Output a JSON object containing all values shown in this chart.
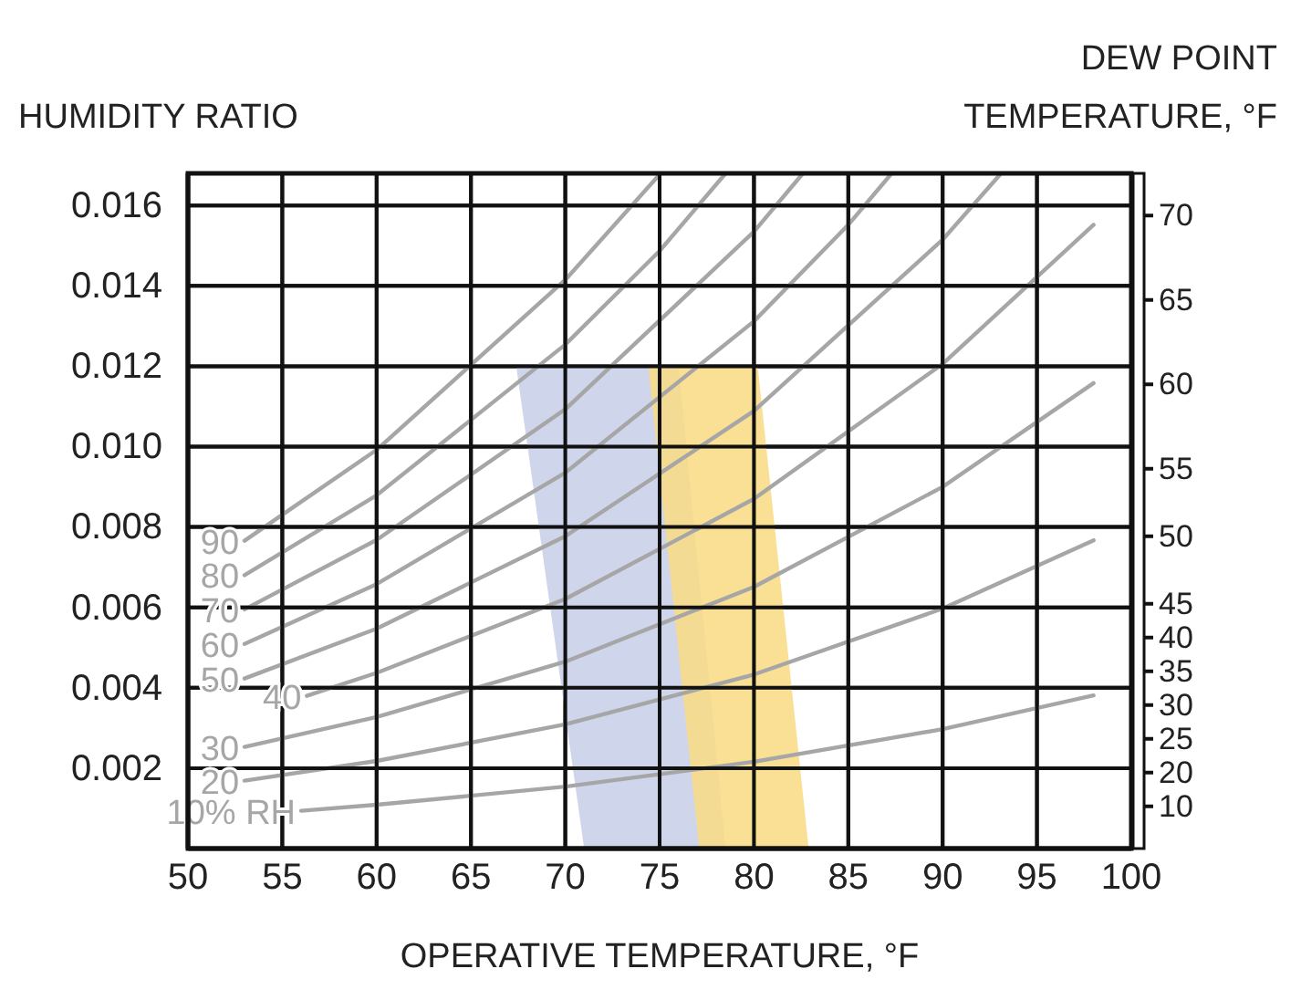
{
  "chart_data": {
    "type": "line",
    "xlabel": "OPERATIVE TEMPERATURE, °F",
    "ylabel": "HUMIDITY RATIO",
    "y2label": "DEW POINT TEMPERATURE, °F",
    "xlim": [
      50,
      100
    ],
    "xticks": [
      50,
      55,
      60,
      65,
      70,
      75,
      80,
      85,
      90,
      95,
      100
    ],
    "ylim": [
      0,
      0.0168
    ],
    "yticks": [
      0.002,
      0.004,
      0.006,
      0.008,
      {
        "value": 0.01,
        "label": "0.010"
      },
      0.012,
      0.014,
      0.016
    ],
    "y2_categories": [
      null,
      null,
      "70",
      null,
      null,
      null,
      null,
      "65",
      null,
      null,
      null,
      null,
      "60",
      null,
      null,
      null,
      null,
      "55",
      null,
      null,
      null,
      "50",
      null,
      null,
      null,
      "45",
      null,
      "40",
      null,
      "35",
      null,
      "30",
      null,
      "25",
      null,
      "20",
      null,
      "10",
      null,
      null
    ],
    "grid": true,
    "legend": false,
    "marker": "none",
    "line_style": "solid",
    "series": [
      {
        "type": "area",
        "color": "#c8cfe8",
        "x": [
          67.4,
          76.0,
          78.5,
          71.0
        ],
        "values": [
          0.012,
          0.012,
          0,
          0
        ]
      },
      {
        "type": "area",
        "color": "#f8dc86",
        "x": [
          74.4,
          80.2,
          82.9,
          77.1
        ],
        "values": [
          0.012,
          0.012,
          0,
          0
        ]
      },
      {
        "name": "90",
        "color": "#a6a6a6",
        "x": [
          53,
          60,
          70,
          75.05
        ],
        "values": [
          0.00766,
          0.00992,
          0.01415,
          0.0168
        ]
      },
      {
        "name": "80",
        "color": "#a6a6a6",
        "x": [
          53,
          60,
          70,
          75,
          78.5
        ],
        "values": [
          0.0068,
          0.00879,
          0.01254,
          0.01487,
          0.0168
        ]
      },
      {
        "name": "70",
        "color": "#a6a6a6",
        "x": [
          53,
          60,
          70,
          80,
          82.6
        ],
        "values": [
          0.00595,
          0.00768,
          0.01093,
          0.01535,
          0.0168
        ]
      },
      {
        "name": "60",
        "color": "#a6a6a6",
        "x": [
          53,
          60,
          70,
          80,
          85,
          87.3
        ],
        "values": [
          0.00509,
          0.00658,
          0.00935,
          0.01312,
          0.01552,
          0.0168
        ]
      },
      {
        "name": "50",
        "color": "#a6a6a6",
        "x": [
          53,
          60,
          70,
          80,
          90,
          93.1
        ],
        "values": [
          0.00423,
          0.00547,
          0.00777,
          0.01089,
          0.01515,
          0.0168
        ]
      },
      {
        "name": "40",
        "color": "#a6a6a6",
        "x": [
          56.3,
          60,
          70,
          80,
          90,
          98
        ],
        "values": [
          0.0038,
          0.00437,
          0.00621,
          0.0087,
          0.01206,
          0.01552
        ]
      },
      {
        "name": "30",
        "color": "#a6a6a6",
        "x": [
          53,
          60,
          70,
          80,
          90,
          98
        ],
        "values": [
          0.00253,
          0.00327,
          0.00465,
          0.00651,
          0.009,
          0.01158
        ]
      },
      {
        "name": "20",
        "color": "#a6a6a6",
        "x": [
          53,
          60,
          70,
          80,
          90,
          98
        ],
        "values": [
          0.00169,
          0.00218,
          0.00309,
          0.00433,
          0.00597,
          0.00767
        ]
      },
      {
        "name": "10% RH",
        "color": "#a6a6a6",
        "x": [
          56,
          60,
          70,
          80,
          90,
          98
        ],
        "values": [
          0.00094,
          0.00109,
          0.00154,
          0.00216,
          0.00297,
          0.00381
        ]
      }
    ]
  }
}
